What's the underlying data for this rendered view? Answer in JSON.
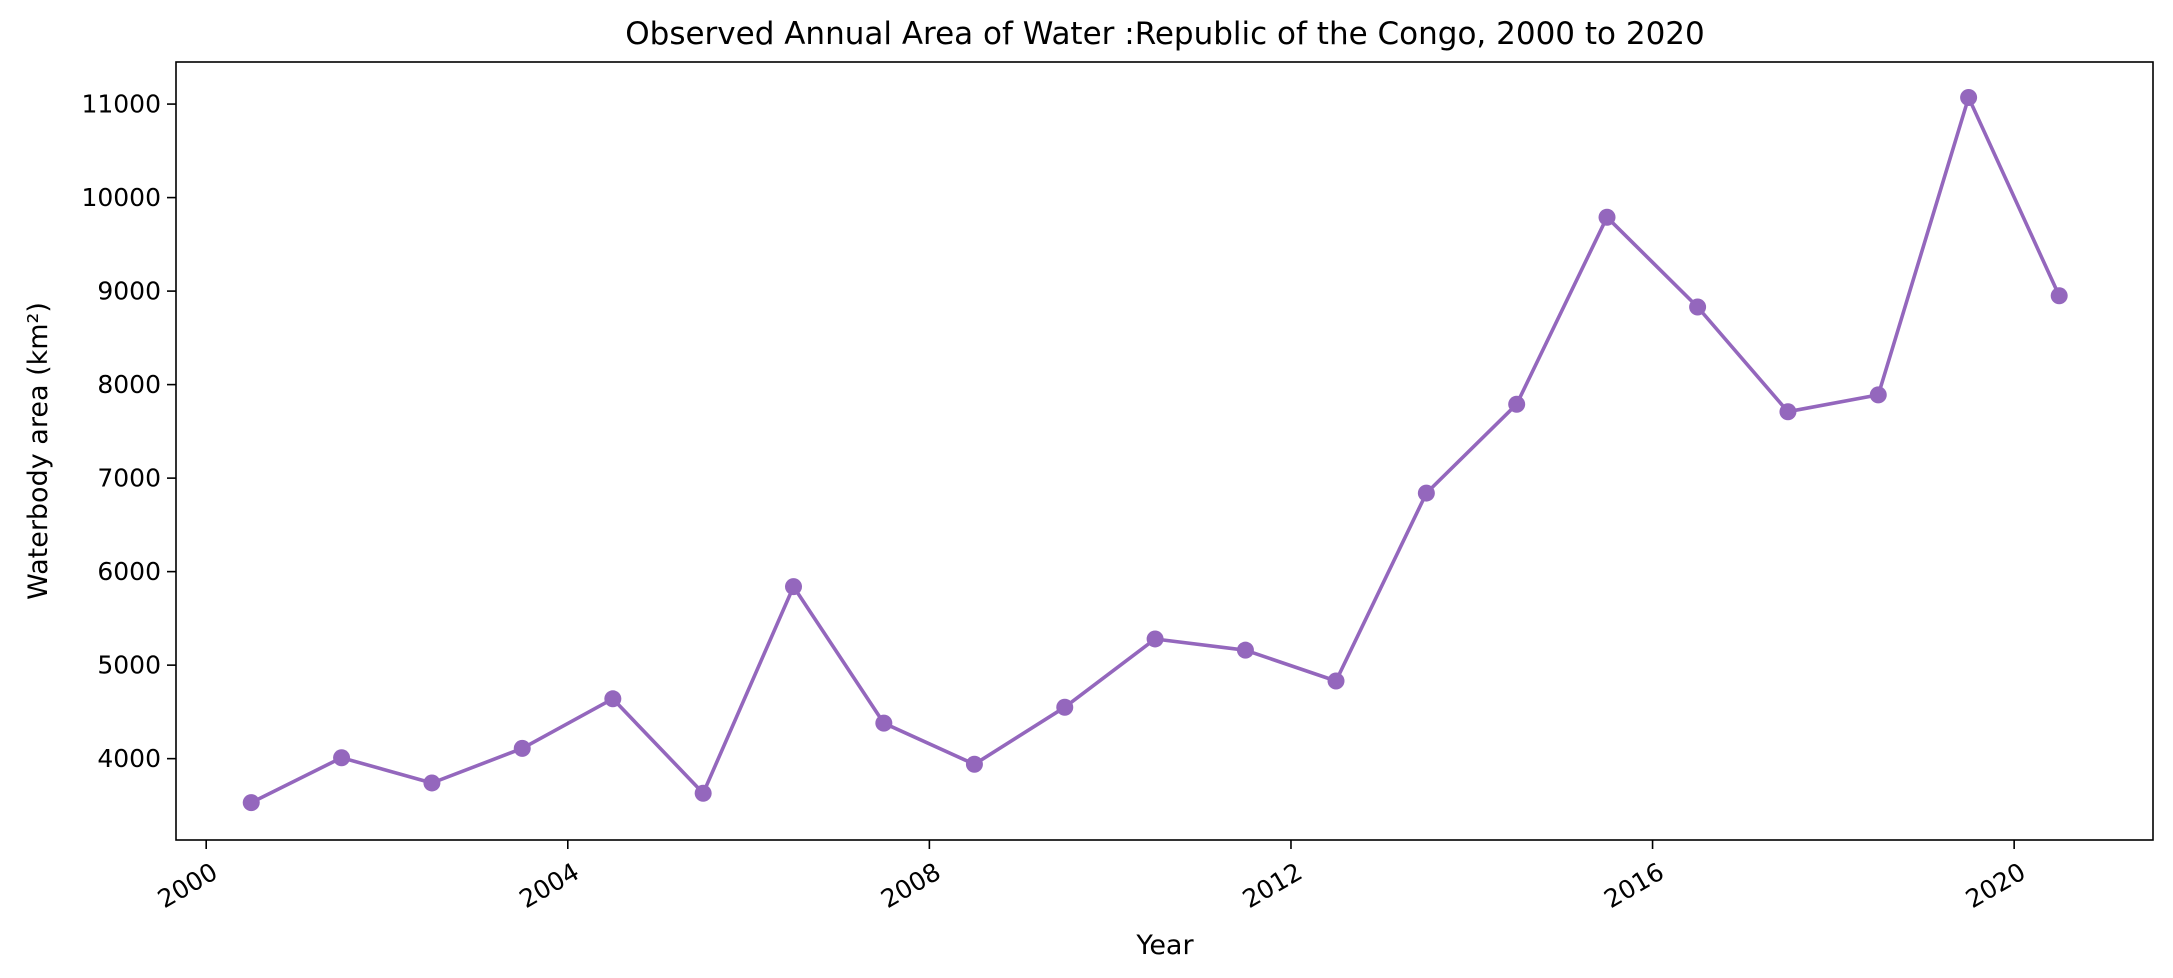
{
  "chart_data": {
    "type": "line",
    "title": "Observed Annual Area of Water :Republic of the Congo, 2000 to 2020",
    "xlabel": "Year",
    "ylabel": "Waterbody area (km²)",
    "x_ticks": [
      "2000",
      "2004",
      "2008",
      "2012",
      "2016",
      "2020"
    ],
    "y_ticks": [
      "4000",
      "5000",
      "6000",
      "7000",
      "8000",
      "9000",
      "10000",
      "11000"
    ],
    "xlim": [
      "1999-09-01",
      "2021-07-15"
    ],
    "ylim": [
      3130,
      11450
    ],
    "grid": false,
    "legend": "none",
    "series": [
      {
        "color": "#9467bd",
        "marker": "circle",
        "x": [
          "2000-07-01",
          "2001-07-01",
          "2002-07-01",
          "2003-07-01",
          "2004-07-01",
          "2005-07-01",
          "2006-07-01",
          "2007-07-01",
          "2008-07-01",
          "2009-07-01",
          "2010-07-01",
          "2011-07-01",
          "2012-07-01",
          "2013-07-01",
          "2014-07-01",
          "2015-07-01",
          "2016-07-01",
          "2017-07-01",
          "2018-07-01",
          "2019-07-01",
          "2020-07-01"
        ],
        "values": [
          3530,
          4010,
          3740,
          4110,
          4640,
          3630,
          5840,
          4380,
          3940,
          4550,
          5280,
          5160,
          4830,
          6840,
          7790,
          9790,
          8830,
          7710,
          7890,
          11070,
          8950
        ]
      }
    ]
  }
}
